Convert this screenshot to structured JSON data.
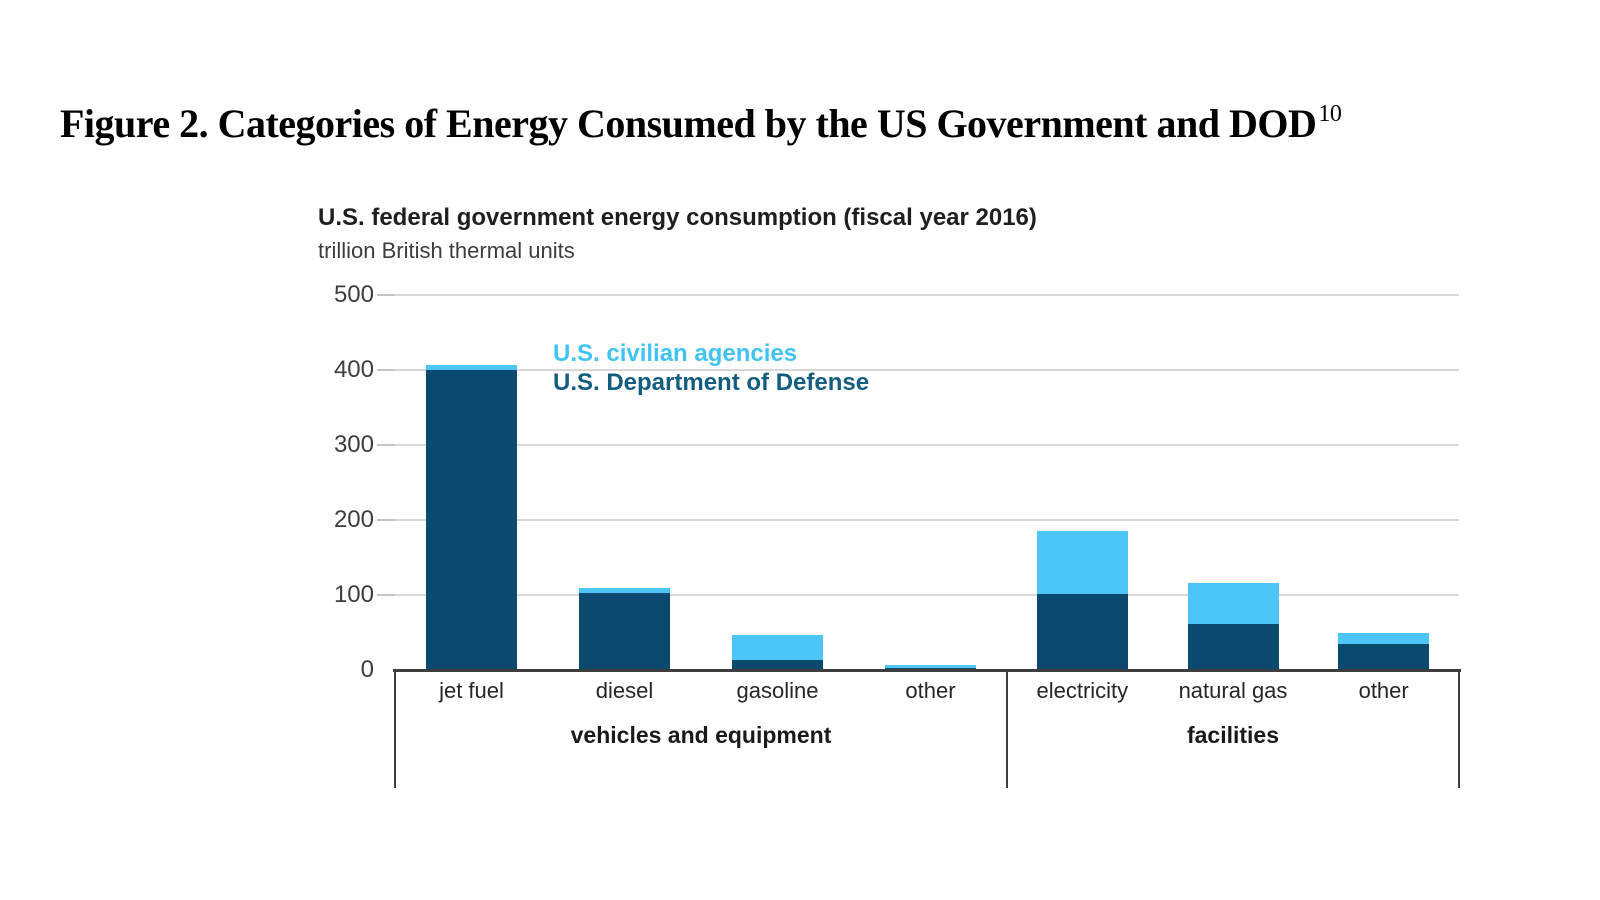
{
  "figure": {
    "title": "Figure 2. Categories of Energy Consumed by the US Government and DOD",
    "footnote_marker": "10"
  },
  "chart_data": {
    "type": "bar",
    "stacked": true,
    "title": "U.S. federal government energy consumption (fiscal year 2016)",
    "subtitle": "trillion British thermal units",
    "ylabel": "trillion British thermal units",
    "categories": [
      "jet fuel",
      "diesel",
      "gasoline",
      "other",
      "electricity",
      "natural gas",
      "other"
    ],
    "groups": [
      {
        "label": "vehicles and equipment",
        "category_indexes": [
          0,
          1,
          2,
          3
        ]
      },
      {
        "label": "facilities",
        "category_indexes": [
          4,
          5,
          6
        ]
      }
    ],
    "series": [
      {
        "name": "U.S. Department of Defense",
        "color": "#0b4a6e",
        "text_color": "#135e80",
        "values": [
          399,
          101,
          12,
          1,
          100,
          60,
          33
        ]
      },
      {
        "name": "U.S. civilian agencies",
        "color": "#4ec5f7",
        "text_color": "#41c3f3",
        "values": [
          6,
          7,
          33,
          5,
          84,
          55,
          15
        ]
      }
    ],
    "totals": [
      405,
      108,
      45,
      6,
      184,
      115,
      48
    ],
    "ylim": [
      0,
      500
    ],
    "yticks": [
      0,
      100,
      200,
      300,
      400,
      500
    ],
    "grid": true,
    "legend_position": "inside-top-left",
    "legend_order": [
      "U.S. civilian agencies",
      "U.S. Department of Defense"
    ]
  }
}
